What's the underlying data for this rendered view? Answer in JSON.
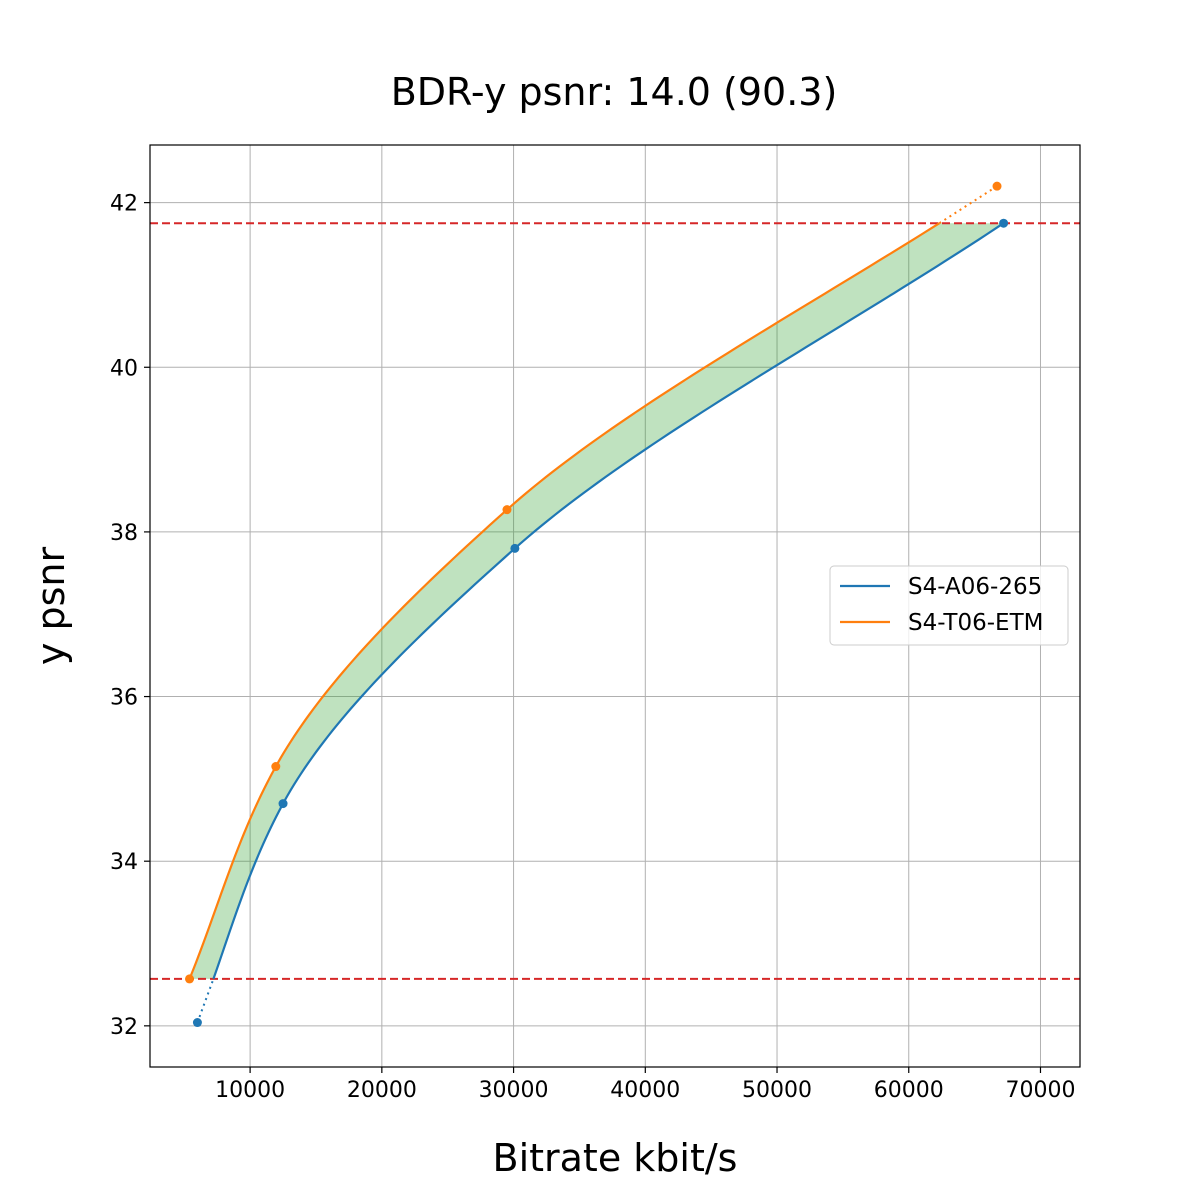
{
  "chart_data": {
    "type": "line",
    "title": "BDR-y psnr: 14.0 (90.3)",
    "xlabel": "Bitrate kbit/s",
    "ylabel": "y psnr",
    "xlim": [
      2400,
      73000
    ],
    "ylim": [
      31.5,
      42.7
    ],
    "xticks": [
      10000,
      20000,
      30000,
      40000,
      50000,
      60000,
      70000
    ],
    "yticks": [
      32,
      34,
      36,
      38,
      40,
      42
    ],
    "grid": true,
    "legend_position": "center-right",
    "reference_lines": [
      {
        "y": 32.57,
        "color": "#d62728",
        "style": "dashed"
      },
      {
        "y": 41.75,
        "color": "#d62728",
        "style": "dashed"
      }
    ],
    "series": [
      {
        "name": "S4-A06-265",
        "color": "#1f77b4",
        "points": [
          {
            "x": 6000,
            "y": 32.04
          },
          {
            "x": 12500,
            "y": 34.7
          },
          {
            "x": 30100,
            "y": 37.8
          },
          {
            "x": 67200,
            "y": 41.75
          }
        ]
      },
      {
        "name": "S4-T06-ETM",
        "color": "#ff7f0e",
        "points": [
          {
            "x": 5400,
            "y": 32.57
          },
          {
            "x": 11950,
            "y": 35.15
          },
          {
            "x": 29500,
            "y": 38.27
          },
          {
            "x": 66700,
            "y": 42.2
          }
        ]
      }
    ],
    "fill_between_color": "#2ca02c"
  }
}
